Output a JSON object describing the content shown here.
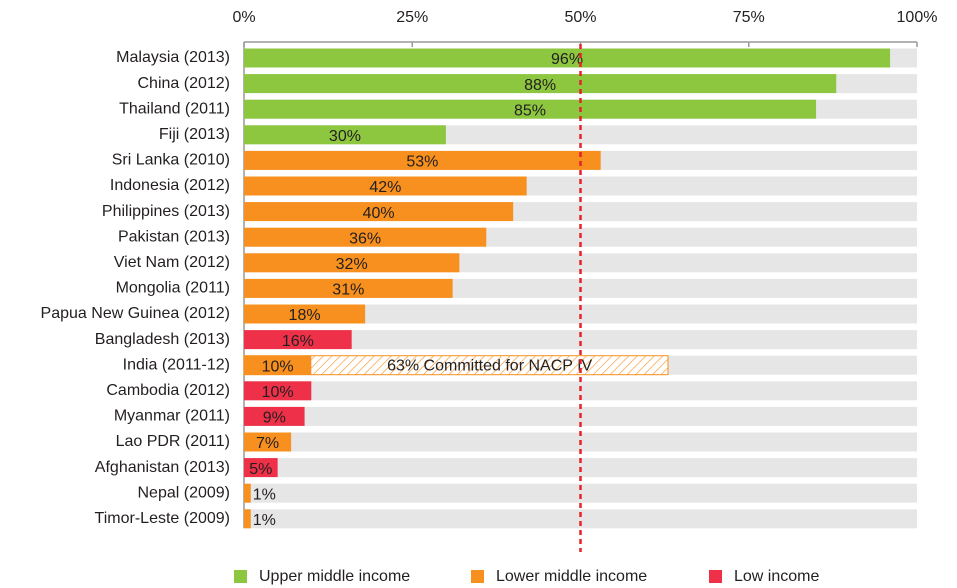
{
  "chart_data": {
    "type": "bar",
    "orientation": "horizontal",
    "categories": [
      "Malaysia (2013)",
      "China (2012)",
      "Thailand (2011)",
      "Fiji (2013)",
      "Sri Lanka (2010)",
      "Indonesia (2012)",
      "Philippines (2013)",
      "Pakistan (2013)",
      "Viet Nam (2012)",
      "Mongolia (2011)",
      "Papua New Guinea (2012)",
      "Bangladesh (2013)",
      "India (2011-12)",
      "Cambodia (2012)",
      "Myanmar (2011)",
      "Lao PDR (2011)",
      "Afghanistan (2013)",
      "Nepal (2009)",
      "Timor-Leste (2009)"
    ],
    "series": [
      {
        "name": "Upper middle income",
        "color": "#8dc63f",
        "values": [
          96,
          88,
          85,
          30,
          null,
          null,
          null,
          null,
          null,
          null,
          null,
          null,
          null,
          null,
          null,
          null,
          null,
          null,
          null
        ],
        "value_labels": [
          "96%",
          "88%",
          "85%",
          "30%",
          null,
          null,
          null,
          null,
          null,
          null,
          null,
          null,
          null,
          null,
          null,
          null,
          null,
          null,
          null
        ]
      },
      {
        "name": "Lower middle income",
        "color": "#f7901e",
        "values": [
          null,
          null,
          null,
          null,
          53,
          42,
          40,
          36,
          32,
          31,
          18,
          null,
          10,
          null,
          null,
          7,
          null,
          1,
          1
        ],
        "value_labels": [
          null,
          null,
          null,
          null,
          "53%",
          "42%",
          "40%",
          "36%",
          "32%",
          "31%",
          "18%",
          null,
          "10%",
          null,
          null,
          "7%",
          null,
          "1%",
          "1%"
        ]
      },
      {
        "name": "Low income",
        "color": "#ee3048",
        "values": [
          null,
          null,
          null,
          null,
          null,
          null,
          null,
          null,
          null,
          null,
          null,
          16,
          null,
          10,
          9,
          null,
          5,
          null,
          null
        ],
        "value_labels": [
          null,
          null,
          null,
          null,
          null,
          null,
          null,
          null,
          null,
          null,
          null,
          "16%",
          null,
          "10%",
          "9%",
          null,
          "5%",
          null,
          null
        ]
      }
    ],
    "xlim": [
      0,
      100
    ],
    "xticks": [
      {
        "value": 0,
        "label": "0%"
      },
      {
        "value": 25,
        "label": "25%"
      },
      {
        "value": 50,
        "label": "50%"
      },
      {
        "value": 75,
        "label": "75%"
      },
      {
        "value": 100,
        "label": "100%"
      }
    ],
    "background_color": "#e6e6e6",
    "reference_line": {
      "value": 50,
      "color": "#e8202a"
    },
    "annotations": [
      {
        "text": "63% Committed for NACP IV",
        "category": "India (2011-12)",
        "value": 63
      }
    ],
    "legend": "bottom"
  }
}
